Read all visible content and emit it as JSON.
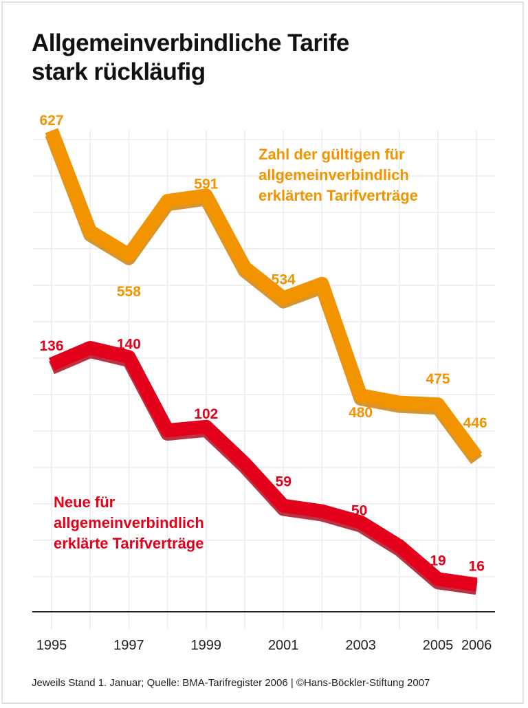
{
  "chart_data": {
    "type": "line",
    "title": "Allgemeinverbindliche Tarife stark rückläufig",
    "title_lines": [
      "Allgemeinverbindliche Tarife",
      "stark rückläufig"
    ],
    "x": [
      1995,
      1996,
      1997,
      1998,
      1999,
      2000,
      2001,
      2002,
      2003,
      2004,
      2005,
      2006
    ],
    "x_tick_labels": [
      "1995",
      "1997",
      "1999",
      "2001",
      "2003",
      "2005",
      "2006"
    ],
    "series": [
      {
        "name": "Zahl der gültigen für allgemeinverbindlich erklärten Tarifverträge",
        "legend_lines": [
          "Zahl der gültigen für",
          "allgemeinverbindlich",
          "erklärten Tarifverträge"
        ],
        "color": "#f29400",
        "shadow": "#c97a00",
        "values": [
          627,
          571,
          558,
          588,
          591,
          551,
          534,
          542,
          480,
          476,
          475,
          446
        ],
        "labeled": [
          1995,
          1997,
          1999,
          2001,
          2003,
          2005,
          2006
        ]
      },
      {
        "name": "Neue für allgemeinverbindlich erklärte Tarifverträge",
        "legend_lines": [
          "Neue für",
          "allgemeinverbindlich",
          "erklärte Tarifverträge"
        ],
        "color": "#e2001a",
        "shadow": "#a80014",
        "values": [
          136,
          145,
          140,
          100,
          102,
          82,
          59,
          56,
          50,
          37,
          19,
          16
        ],
        "labeled": [
          1995,
          1997,
          1999,
          2001,
          2003,
          2005,
          2006
        ]
      }
    ],
    "grid": true,
    "legend": "inline",
    "footnote": "Jeweils Stand 1. Januar; Quelle: BMA-Tarifregister 2006 | ©Hans-Böckler-Stiftung 2007"
  }
}
